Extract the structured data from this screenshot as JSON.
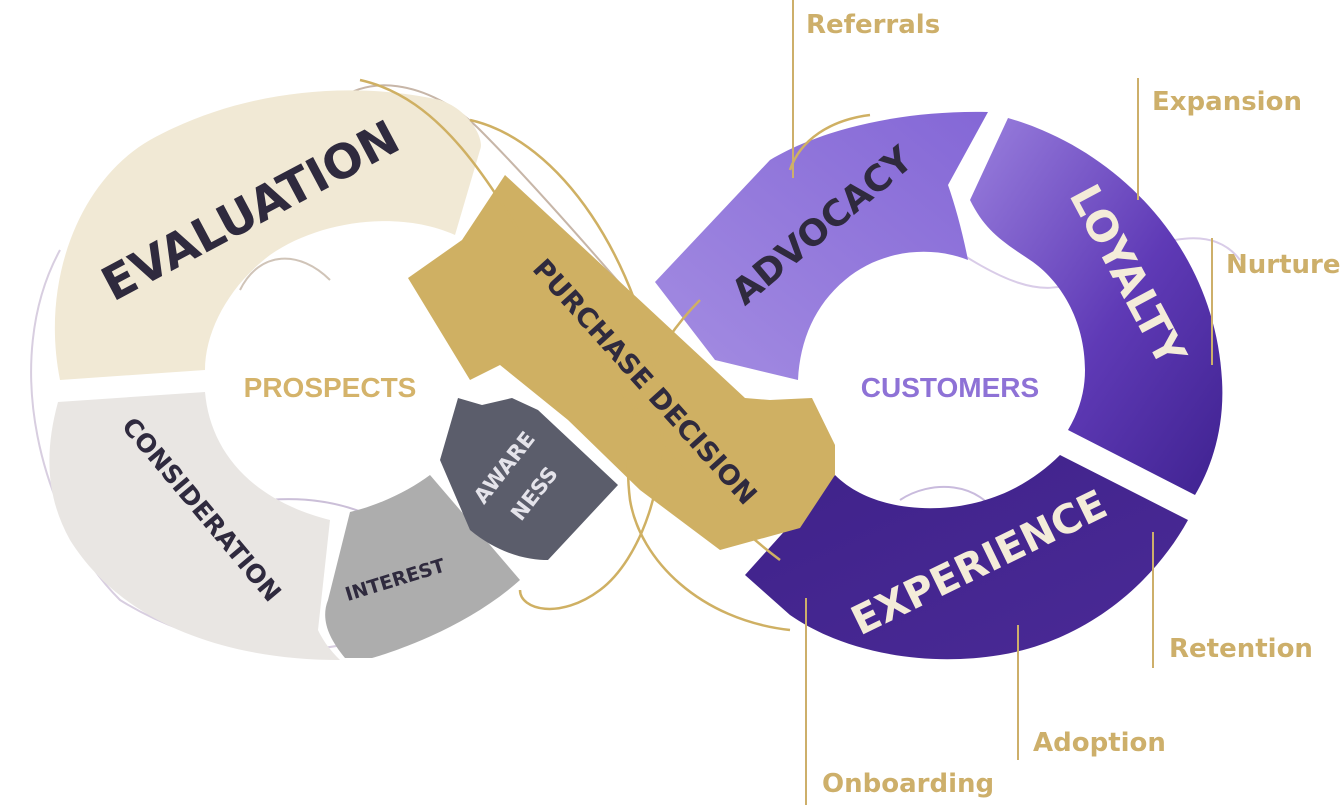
{
  "prospects_loop": {
    "center_label": "PROSPECTS",
    "segments": {
      "evaluation": "EVALUATION",
      "consideration": "CONSIDERATION",
      "interest": "INTEREST",
      "awareness_line1": "AWARE",
      "awareness_line2": "NESS"
    }
  },
  "purchase_decision": "PURCHASE DECISION",
  "customers_loop": {
    "center_label": "CUSTOMERS",
    "segments": {
      "advocacy": "ADVOCACY",
      "loyalty": "LOYALTY",
      "experience": "EXPERIENCE"
    }
  },
  "callouts": {
    "referrals": "Referrals",
    "expansion": "Expansion",
    "nurture": "Nurture",
    "retention": "Retention",
    "adoption": "Adoption",
    "onboarding": "Onboarding"
  },
  "colors": {
    "evaluation": "#F1E9D5",
    "consideration": "#E9E6E3",
    "interest": "#ADADAD",
    "awareness": "#5B5D6B",
    "purchase_decision": "#CFB063",
    "advocacy": "#9175DA",
    "loyalty": "#6A45BF",
    "experience": "#44258F",
    "gold_text": "#CDAF6A",
    "dark_text": "#2F2A3E",
    "cream_text": "#F4ECD9",
    "prospects_text": "#D4B36A",
    "customers_text": "#8E72D6"
  }
}
